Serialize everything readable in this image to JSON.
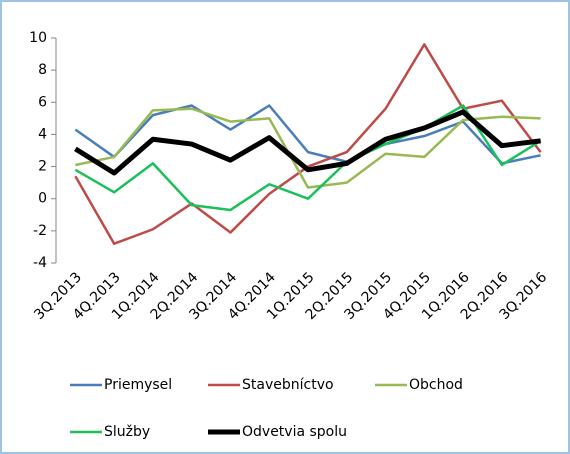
{
  "chart_data": {
    "type": "line",
    "categories": [
      "3Q.2013",
      "4Q.2013",
      "1Q.2014",
      "2Q.2014",
      "3Q.2014",
      "4Q.2014",
      "1Q.2015",
      "2Q.2015",
      "3Q.2015",
      "4Q.2015",
      "1Q.2016",
      "2Q.2016",
      "3Q.2016"
    ],
    "series": [
      {
        "name": "Priemysel",
        "color": "#4a7ebb",
        "values": [
          4.3,
          2.6,
          5.2,
          5.8,
          4.3,
          5.8,
          2.9,
          2.3,
          3.4,
          3.9,
          4.8,
          2.2,
          2.7
        ]
      },
      {
        "name": "Stavebníctvo",
        "color": "#be4b48",
        "values": [
          1.4,
          -2.8,
          -1.9,
          -0.3,
          -2.1,
          0.3,
          2.0,
          2.9,
          5.6,
          9.6,
          5.6,
          6.1,
          2.9
        ]
      },
      {
        "name": "Obchod",
        "color": "#98b954",
        "values": [
          2.1,
          2.6,
          5.5,
          5.6,
          4.8,
          5.0,
          0.7,
          1.0,
          2.8,
          2.6,
          4.9,
          5.1,
          5.0
        ]
      },
      {
        "name": "Služby",
        "color": "#1cc05b",
        "values": [
          1.8,
          0.4,
          2.2,
          -0.4,
          -0.7,
          0.9,
          0.0,
          2.3,
          3.4,
          4.4,
          5.8,
          2.1,
          3.6
        ]
      },
      {
        "name": "Odvetvia spolu",
        "color": "#000000",
        "values": [
          3.1,
          1.6,
          3.7,
          3.4,
          2.4,
          3.8,
          1.8,
          2.2,
          3.7,
          4.4,
          5.4,
          3.3,
          3.6
        ]
      }
    ],
    "ylim": [
      -4,
      10
    ],
    "yticks": [
      -4,
      -2,
      0,
      2,
      4,
      6,
      8,
      10
    ],
    "grid": false
  }
}
